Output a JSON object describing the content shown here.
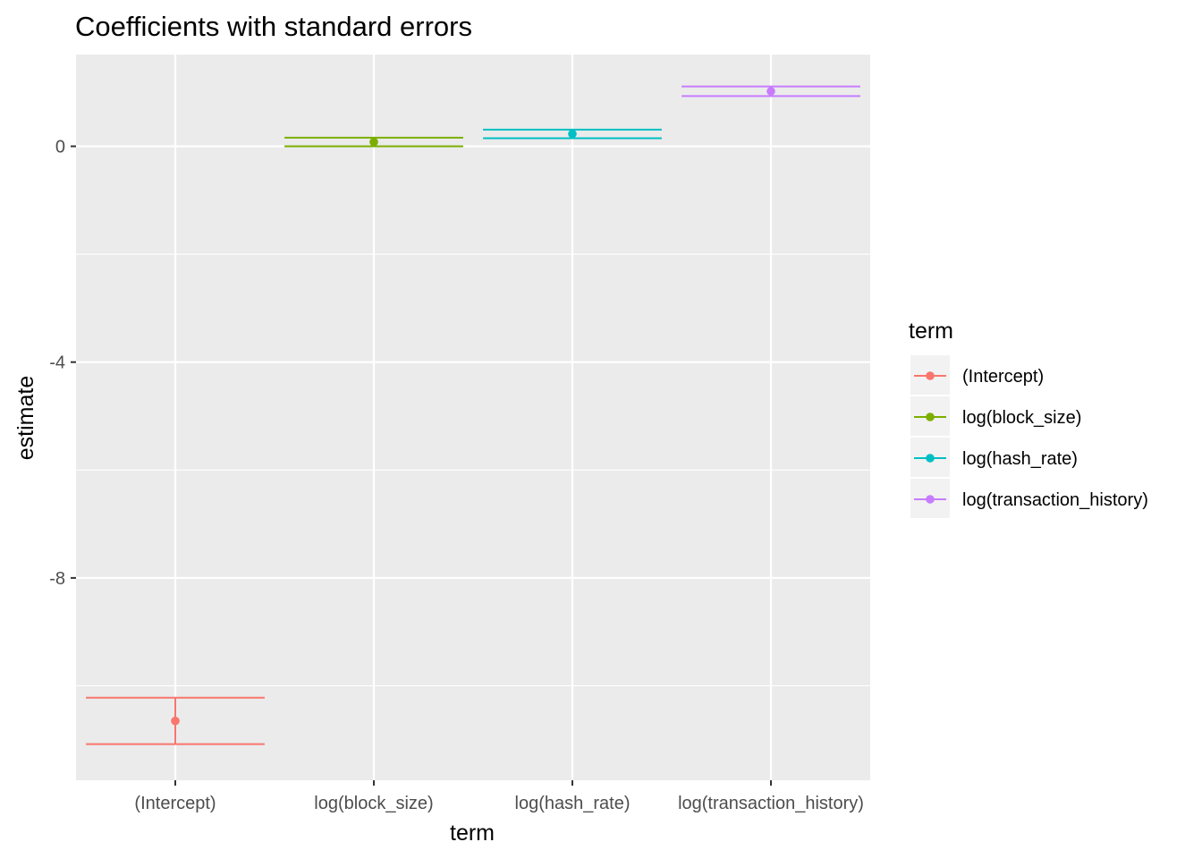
{
  "chart_data": {
    "type": "errorbar",
    "title": "Coefficients with standard errors",
    "xlabel": "term",
    "ylabel": "estimate",
    "categories": [
      "(Intercept)",
      "log(block_size)",
      "log(hash_rate)",
      "log(transaction_history)"
    ],
    "estimates": [
      -10.65,
      0.08,
      0.23,
      1.02
    ],
    "ymin": [
      -11.08,
      0.0,
      0.15,
      0.93
    ],
    "ymax": [
      -10.22,
      0.16,
      0.31,
      1.11
    ],
    "colors": [
      "#F8766D",
      "#7CAE00",
      "#00BFC4",
      "#C77CFF"
    ],
    "ylim": [
      -11.75,
      1.7
    ],
    "yticks": [
      0,
      -4,
      -8
    ],
    "ytick_labels": [
      "0",
      "-4",
      "-8"
    ],
    "grid": true,
    "panel_background": "#EBEBEB",
    "grid_color": "#FFFFFF",
    "legend": {
      "title": "term",
      "position": "right",
      "entries": [
        "(Intercept)",
        "log(block_size)",
        "log(hash_rate)",
        "log(transaction_history)"
      ]
    }
  }
}
